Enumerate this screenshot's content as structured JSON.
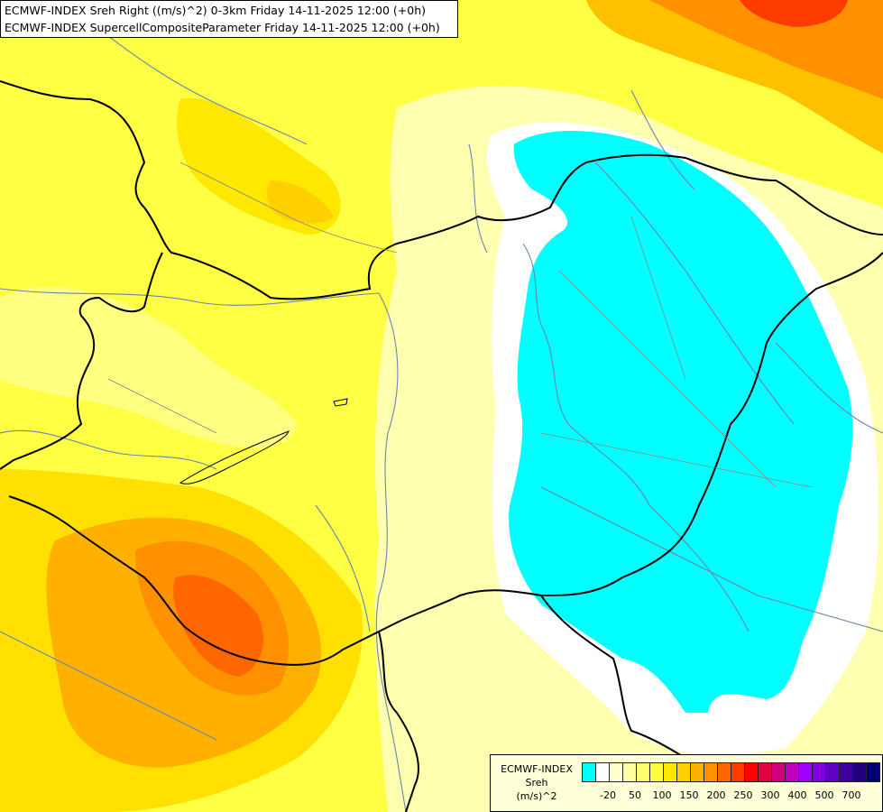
{
  "titles": {
    "line1": "ECMWF-INDEX Sreh Right ((m/s)^2) 0-3km Friday 14-11-2025 12:00 (+0h)",
    "line2": "ECMWF-INDEX SupercellCompositeParameter Friday 14-11-2025 12:00 (+0h)"
  },
  "legend": {
    "caption": [
      "ECMWF-INDEX",
      "Sreh",
      "(m/s)^2"
    ],
    "colors": [
      "#00ffff",
      "#ffffff",
      "#ffffd0",
      "#ffffa0",
      "#ffff70",
      "#ffff40",
      "#ffe800",
      "#ffd000",
      "#ffb000",
      "#ff9000",
      "#ff6600",
      "#ff3c00",
      "#ff0000",
      "#e00040",
      "#d00080",
      "#c000c0",
      "#a000ff",
      "#8000e0",
      "#6000c0",
      "#4000a0",
      "#200080",
      "#000070"
    ],
    "ticks": [
      {
        "label": "-20",
        "index": 1
      },
      {
        "label": "50",
        "index": 3
      },
      {
        "label": "100",
        "index": 5
      },
      {
        "label": "150",
        "index": 7
      },
      {
        "label": "200",
        "index": 9
      },
      {
        "label": "250",
        "index": 11
      },
      {
        "label": "300",
        "index": 13
      },
      {
        "label": "400",
        "index": 15
      },
      {
        "label": "500",
        "index": 17
      },
      {
        "label": "700",
        "index": 19
      }
    ]
  }
}
